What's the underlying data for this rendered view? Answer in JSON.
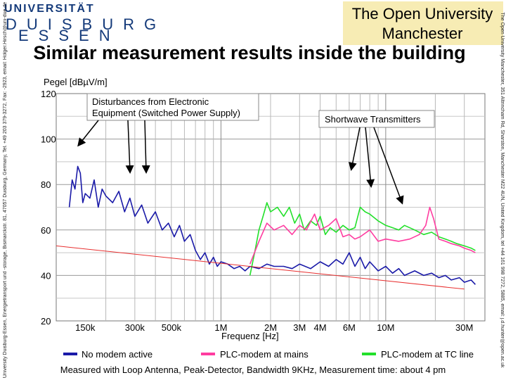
{
  "header": {
    "university_name": "UNIVERSITÄT",
    "university_city_line1": "DUISBURG",
    "university_city_line2": "ESSEN",
    "partner_line1": "The Open University",
    "partner_line2": "Manchester",
    "title": "Similar measurement results inside the building"
  },
  "side_text": {
    "left": "University Duisburg-Essen, Energietransport und -storage, Bismarckstr. 81, 47057 Duisburg, Germany, Tel. +49 203 379-3272, Fax: -2923, email: Holger.Hirsch@uni-due.de",
    "right": "The Open University Manchester, 351 Altrincham Rd, Sharston, Manchester M22 4UN, United Kingdom, tel +44 161 998 7272, 5885, email: j.d.hunter@open.ac.uk"
  },
  "footer": "Measured with Loop Antenna, Peak-Detector, Bandwidth 9KHz, Measurement time: about 4 pm",
  "chart_data": {
    "type": "line",
    "title": "",
    "ylabel": "Pegel [dBµV/m]",
    "xlabel": "Frequenz [Hz]",
    "x_scale": "log",
    "ylim": [
      20,
      120
    ],
    "xlim": [
      100000,
      40000000
    ],
    "y_ticks": [
      {
        "value": 120,
        "label": "120"
      },
      {
        "value": 100,
        "label": "100"
      },
      {
        "value": 80,
        "label": "80"
      },
      {
        "value": 60,
        "label": "60"
      },
      {
        "value": 40,
        "label": "40"
      },
      {
        "value": 20,
        "label": "20"
      }
    ],
    "x_ticks": [
      {
        "value": 150000,
        "label": "150k"
      },
      {
        "value": 300000,
        "label": "300k"
      },
      {
        "value": 500000,
        "label": "500k"
      },
      {
        "value": 1000000,
        "label": "1M"
      },
      {
        "value": 2000000,
        "label": "2M"
      },
      {
        "value": 3000000,
        "label": "3M"
      },
      {
        "value": 4000000,
        "label": "4M"
      },
      {
        "value": 6000000,
        "label": "6M"
      },
      {
        "value": 10000000,
        "label": "10M"
      },
      {
        "value": 30000000,
        "label": "30M"
      }
    ],
    "grid": true,
    "legend_position": "bottom",
    "colors": {
      "no_modem": "#1a1aa8",
      "plc_mains": "#ff3ca0",
      "plc_tc": "#22e02a",
      "limit": "#e83030",
      "annotation": "#000000"
    },
    "series": [
      {
        "name": "PLC-modem at TC line",
        "color": "#22e02a",
        "points": [
          [
            1500000,
            40
          ],
          [
            1600000,
            50
          ],
          [
            1700000,
            60
          ],
          [
            1800000,
            66
          ],
          [
            1900000,
            72
          ],
          [
            2000000,
            68
          ],
          [
            2200000,
            70
          ],
          [
            2400000,
            66
          ],
          [
            2600000,
            70
          ],
          [
            2800000,
            63
          ],
          [
            3000000,
            67
          ],
          [
            3200000,
            60
          ],
          [
            3500000,
            64
          ],
          [
            3800000,
            62
          ],
          [
            4000000,
            66
          ],
          [
            4300000,
            58
          ],
          [
            4600000,
            61
          ],
          [
            5000000,
            59
          ],
          [
            5500000,
            62
          ],
          [
            6000000,
            60
          ],
          [
            6500000,
            61
          ],
          [
            7000000,
            70
          ],
          [
            7500000,
            68
          ],
          [
            8000000,
            67
          ],
          [
            9000000,
            64
          ],
          [
            10000000,
            62
          ],
          [
            11000000,
            61
          ],
          [
            12000000,
            60
          ],
          [
            13000000,
            62
          ],
          [
            15000000,
            60
          ],
          [
            17000000,
            58
          ],
          [
            19000000,
            59
          ],
          [
            21000000,
            57
          ],
          [
            23000000,
            56
          ],
          [
            25000000,
            55
          ],
          [
            27000000,
            54
          ],
          [
            30000000,
            53
          ],
          [
            33000000,
            52
          ],
          [
            35000000,
            51
          ]
        ]
      },
      {
        "name": "PLC-modem at mains",
        "color": "#ff3ca0",
        "points": [
          [
            1500000,
            45
          ],
          [
            1700000,
            55
          ],
          [
            1900000,
            63
          ],
          [
            2100000,
            60
          ],
          [
            2400000,
            62
          ],
          [
            2700000,
            58
          ],
          [
            3000000,
            62
          ],
          [
            3300000,
            60
          ],
          [
            3700000,
            67
          ],
          [
            4000000,
            60
          ],
          [
            4500000,
            62
          ],
          [
            5000000,
            65
          ],
          [
            5500000,
            57
          ],
          [
            6000000,
            58
          ],
          [
            6500000,
            56
          ],
          [
            7000000,
            57
          ],
          [
            8000000,
            60
          ],
          [
            9000000,
            55
          ],
          [
            10000000,
            56
          ],
          [
            12000000,
            55
          ],
          [
            14000000,
            56
          ],
          [
            16000000,
            58
          ],
          [
            17500000,
            62
          ],
          [
            18500000,
            70
          ],
          [
            19500000,
            65
          ],
          [
            21000000,
            56
          ],
          [
            23000000,
            55
          ],
          [
            25000000,
            54
          ],
          [
            28000000,
            53
          ],
          [
            30000000,
            52
          ],
          [
            33000000,
            51
          ],
          [
            35000000,
            50
          ]
        ]
      },
      {
        "name": "No modem active",
        "color": "#1a1aa8",
        "points": [
          [
            120000,
            70
          ],
          [
            125000,
            82
          ],
          [
            130000,
            78
          ],
          [
            135000,
            88
          ],
          [
            140000,
            85
          ],
          [
            145000,
            72
          ],
          [
            150000,
            76
          ],
          [
            160000,
            74
          ],
          [
            170000,
            82
          ],
          [
            180000,
            70
          ],
          [
            190000,
            78
          ],
          [
            200000,
            75
          ],
          [
            220000,
            72
          ],
          [
            240000,
            77
          ],
          [
            260000,
            68
          ],
          [
            280000,
            74
          ],
          [
            300000,
            66
          ],
          [
            330000,
            71
          ],
          [
            360000,
            63
          ],
          [
            400000,
            68
          ],
          [
            440000,
            60
          ],
          [
            480000,
            63
          ],
          [
            520000,
            57
          ],
          [
            560000,
            62
          ],
          [
            600000,
            55
          ],
          [
            650000,
            58
          ],
          [
            700000,
            51
          ],
          [
            750000,
            47
          ],
          [
            800000,
            50
          ],
          [
            850000,
            45
          ],
          [
            900000,
            48
          ],
          [
            950000,
            44
          ],
          [
            1000000,
            46
          ],
          [
            1100000,
            45
          ],
          [
            1200000,
            43
          ],
          [
            1300000,
            44
          ],
          [
            1400000,
            42
          ],
          [
            1500000,
            44
          ],
          [
            1700000,
            43
          ],
          [
            1900000,
            45
          ],
          [
            2100000,
            44
          ],
          [
            2400000,
            44
          ],
          [
            2700000,
            43
          ],
          [
            3000000,
            45
          ],
          [
            3500000,
            43
          ],
          [
            4000000,
            46
          ],
          [
            4500000,
            44
          ],
          [
            5000000,
            47
          ],
          [
            5500000,
            45
          ],
          [
            6000000,
            50
          ],
          [
            6500000,
            44
          ],
          [
            7000000,
            48
          ],
          [
            7500000,
            43
          ],
          [
            8000000,
            46
          ],
          [
            9000000,
            42
          ],
          [
            10000000,
            44
          ],
          [
            11000000,
            41
          ],
          [
            12000000,
            43
          ],
          [
            13000000,
            40
          ],
          [
            15000000,
            42
          ],
          [
            17000000,
            40
          ],
          [
            19000000,
            41
          ],
          [
            21000000,
            39
          ],
          [
            23000000,
            40
          ],
          [
            25000000,
            38
          ],
          [
            28000000,
            39
          ],
          [
            30000000,
            37
          ],
          [
            33000000,
            38
          ],
          [
            35000000,
            36
          ]
        ]
      },
      {
        "name": "",
        "color": "#e83030",
        "points": [
          [
            100000,
            53
          ],
          [
            30000000,
            34
          ]
        ]
      }
    ],
    "annotations": [
      {
        "text_line1": "Disturbances from Electronic",
        "text_line2": "Equipment (Switched Power Supply)"
      },
      {
        "text_line1": "Shortwave Transmitters",
        "text_line2": ""
      }
    ],
    "legend": [
      {
        "label": "No modem active",
        "color": "#1a1aa8"
      },
      {
        "label": "PLC-modem at mains",
        "color": "#ff3ca0"
      },
      {
        "label": "PLC-modem at TC line",
        "color": "#22e02a"
      }
    ]
  }
}
